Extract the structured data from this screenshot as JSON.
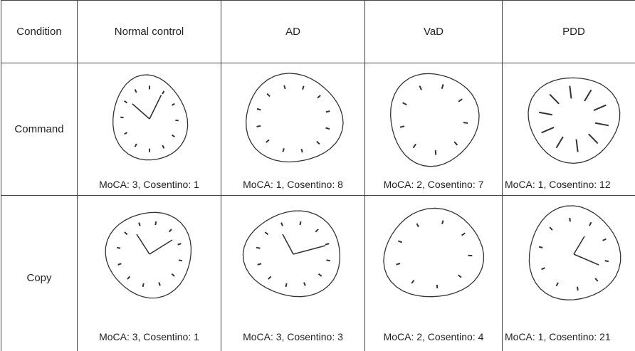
{
  "table": {
    "header": [
      "Condition",
      "Normal control",
      "AD",
      "VaD",
      "PDD"
    ],
    "rows": [
      {
        "label": "Command",
        "captions": [
          "MoCA: 3, Cosentino: 1",
          "MoCA: 1, Cosentino: 8",
          "MoCA: 2, Cosentino: 7",
          "MoCA: 1, Cosentino: 12"
        ]
      },
      {
        "label": "Copy",
        "captions": [
          "MoCA: 3, Cosentino: 1",
          "MoCA: 3, Cosentino: 3",
          "MoCA: 2, Cosentino: 4",
          "MoCA: 1, Cosentino: 21"
        ]
      }
    ]
  }
}
